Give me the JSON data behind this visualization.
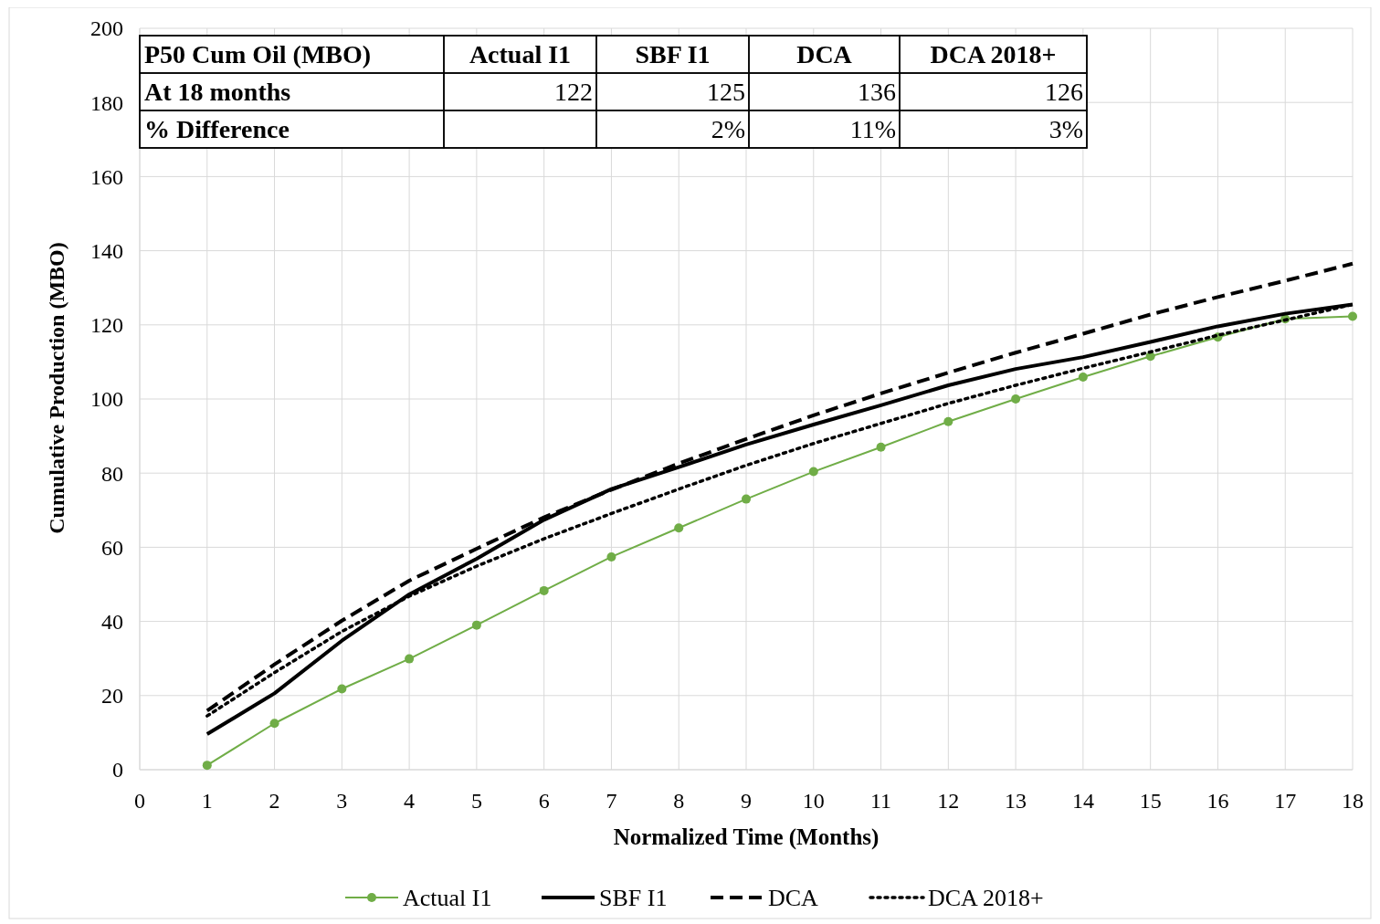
{
  "chart_data": {
    "type": "line",
    "xlabel": "Normalized Time (Months)",
    "ylabel": "Cumulative Production (MBO)",
    "x": [
      1,
      2,
      3,
      4,
      5,
      6,
      7,
      8,
      9,
      10,
      11,
      12,
      13,
      14,
      15,
      16,
      17,
      18
    ],
    "xlim": [
      0,
      18
    ],
    "xticks": [
      0,
      1,
      2,
      3,
      4,
      5,
      6,
      7,
      8,
      9,
      10,
      11,
      12,
      13,
      14,
      15,
      16,
      17,
      18
    ],
    "ylim": [
      0,
      200
    ],
    "yticks": [
      0,
      20,
      40,
      60,
      80,
      100,
      120,
      140,
      160,
      180,
      200
    ],
    "grid": true,
    "legend": "bottom",
    "series": [
      {
        "name": "Actual I1",
        "color": "#70ad47",
        "marker": "circle",
        "line_style": "solid",
        "values": [
          1.2,
          12.5,
          21.8,
          29.9,
          39,
          48.3,
          57.4,
          65.2,
          73,
          80.4,
          87,
          93.9,
          100,
          105.9,
          111.5,
          116.7,
          121.6,
          122.3
        ]
      },
      {
        "name": "SBF I1",
        "color": "#000000",
        "marker": "none",
        "line_style": "solid",
        "values": [
          9.6,
          20.6,
          34.8,
          47.3,
          56.9,
          67.4,
          75.7,
          81.6,
          87.7,
          93.1,
          98.3,
          103.7,
          108.1,
          111.3,
          115.4,
          119.6,
          123,
          125.5
        ]
      },
      {
        "name": "DCA",
        "color": "#000000",
        "marker": "none",
        "line_style": "dashed",
        "values": [
          15.9,
          28.4,
          40.2,
          51,
          59.6,
          68.1,
          75.5,
          82.6,
          89.2,
          95.6,
          101.5,
          107.1,
          112.5,
          117.6,
          122.8,
          127.5,
          131.9,
          136.5
        ]
      },
      {
        "name": "DCA 2018+",
        "color": "#000000",
        "marker": "none",
        "line_style": "dotted",
        "values": [
          14.5,
          26.2,
          37.3,
          46.8,
          54.9,
          62.3,
          69.1,
          75.7,
          82.1,
          88,
          93.4,
          98.8,
          103.7,
          108.3,
          112.7,
          117.2,
          121.3,
          125.5
        ]
      }
    ],
    "annotations": [
      "P50 Cum Oil (MBO)",
      "Actual I1",
      "SBF I1",
      "DCA",
      "DCA 2018+",
      "At 18 months",
      "122",
      "125",
      "136",
      "126",
      "% Difference",
      null,
      "2%",
      "11%",
      "3%"
    ]
  }
}
